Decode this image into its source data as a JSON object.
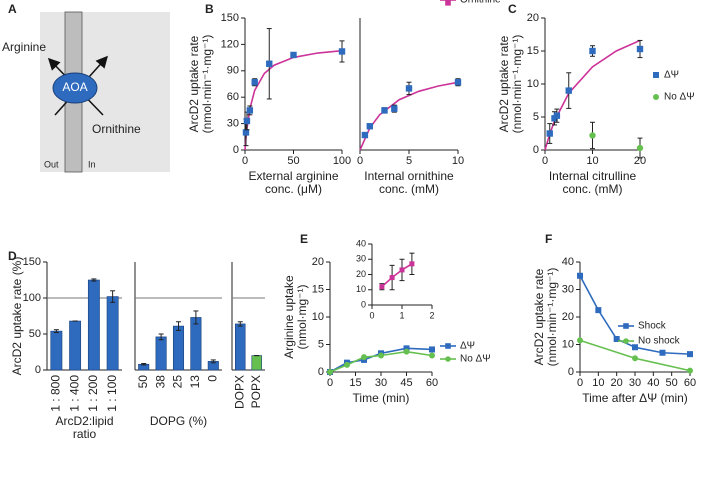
{
  "diagram": {
    "panel_label": "A",
    "substrate": "Arginine",
    "protein": "AOA",
    "product": "Ornithine",
    "outside": "Out",
    "inside": "In"
  },
  "chart_data": [
    {
      "type": "scatter",
      "panel_label": "B",
      "ylabel": [
        "ArcD2 uptake rate",
        "(nmol·min⁻¹·mg⁻¹)"
      ],
      "xlabel": [
        "External arginine",
        "conc. (μM)"
      ],
      "xlim": [
        0,
        100
      ],
      "xticks": [
        0,
        50,
        100
      ],
      "ylim": [
        0,
        150
      ],
      "yticks": [
        0,
        30,
        60,
        90,
        120,
        150
      ],
      "series": [
        {
          "color": "#2e6bbf",
          "marker": "square",
          "x": [
            1,
            2,
            5,
            10,
            25,
            50,
            100
          ],
          "values": [
            20,
            33,
            45,
            77,
            98,
            108,
            112
          ],
          "errors": [
            15,
            10,
            5,
            4,
            40,
            2,
            12
          ]
        }
      ],
      "fit": {
        "color": "#cc3399",
        "x": [
          0,
          1,
          2,
          5,
          10,
          20,
          30,
          50,
          75,
          100
        ],
        "values": [
          0,
          13.6,
          24.4,
          46.9,
          67.8,
          87.1,
          96.3,
          105.2,
          110.2,
          112.9
        ]
      }
    },
    {
      "type": "scatter",
      "xlabel": [
        "Internal ornithine",
        "conc. (mM)"
      ],
      "xlim": [
        0,
        10
      ],
      "xticks": [
        0,
        5,
        10
      ],
      "ylim": [
        0,
        150
      ],
      "series": [
        {
          "color": "#2e6bbf",
          "marker": "square",
          "x": [
            0.5,
            1,
            2.5,
            3.5,
            5,
            10
          ],
          "values": [
            17,
            27,
            45,
            47,
            70,
            77
          ],
          "errors": [
            2,
            2,
            3,
            4,
            7,
            4
          ]
        }
      ],
      "fit": {
        "color": "#cc3399",
        "x": [
          0,
          1,
          2,
          4,
          6,
          8,
          10
        ],
        "values": [
          0,
          25,
          40,
          57.1,
          66.7,
          72.7,
          76.9
        ]
      }
    },
    {
      "type": "scatter",
      "panel_label": "C",
      "ylabel": [
        "ArcD2 uptake rate",
        "(nmol·min⁻¹·mg⁻¹)"
      ],
      "xlabel": [
        "Internal citrulline",
        "conc. (mM)"
      ],
      "xlim": [
        0,
        20
      ],
      "xticks": [
        0,
        10,
        20
      ],
      "ylim": [
        0,
        20
      ],
      "yticks": [
        0,
        5,
        10,
        15,
        20
      ],
      "series": [
        {
          "name": "ΔΨ",
          "color": "#2e6bbf",
          "marker": "square",
          "x": [
            1,
            2,
            2.5,
            5,
            10,
            20
          ],
          "values": [
            2.5,
            4.8,
            5.2,
            9,
            15,
            15.3
          ],
          "errors": [
            1.5,
            1,
            1,
            2.7,
            0.8,
            1.3
          ]
        },
        {
          "name": "No ΔΨ",
          "color": "#66c04f",
          "marker": "circle",
          "x": [
            10,
            20
          ],
          "values": [
            2.2,
            0.3
          ],
          "errors": [
            2,
            1.5
          ]
        }
      ],
      "fit": {
        "color": "#cc3399",
        "x": [
          0,
          1,
          2,
          5,
          10,
          15,
          20
        ],
        "values": [
          0,
          2.4,
          4.4,
          8.6,
          12.6,
          15,
          16.6
        ]
      }
    },
    {
      "type": "bar",
      "panel_label": "D",
      "ylabel": [
        "ArcD2 uptake rate (%)"
      ],
      "xlabel": [
        "ArcD2:lipid",
        "ratio"
      ],
      "categories": [
        "1 : 800",
        "1 : 400",
        "1 : 200",
        "1 : 100"
      ],
      "values": [
        54,
        68,
        125,
        102
      ],
      "errors": [
        2,
        0,
        1.5,
        8
      ],
      "color": "#2e6bbf",
      "ylim": [
        0,
        150
      ],
      "yticks": [
        0,
        50,
        100,
        150
      ],
      "refline": 100
    },
    {
      "type": "bar",
      "xlabel": [
        "DOPG (%)"
      ],
      "categories": [
        "50",
        "38",
        "25",
        "13",
        "0"
      ],
      "values": [
        8,
        46,
        61,
        73,
        12
      ],
      "errors": [
        1,
        4,
        6,
        9,
        2
      ],
      "color": "#2e6bbf",
      "ylim": [
        0,
        150
      ],
      "refline": 100
    },
    {
      "type": "bar",
      "categories": [
        "DOPX",
        "POPX"
      ],
      "values": [
        64,
        20
      ],
      "errors": [
        3,
        0
      ],
      "colors": [
        "#2e6bbf",
        "#66c04f"
      ],
      "ylim": [
        0,
        150
      ],
      "refline": 100
    },
    {
      "type": "line",
      "panel_label": "E",
      "ylabel": [
        "Arginine uptake",
        "(nmol·mg⁻¹)"
      ],
      "xlabel": [
        "Time (min)"
      ],
      "xlim": [
        0,
        60
      ],
      "xticks": [
        0,
        15,
        30,
        45,
        60
      ],
      "ylim": [
        0,
        20
      ],
      "yticks": [
        0,
        5,
        10,
        15,
        20
      ],
      "series": [
        {
          "name": "ΔΨ",
          "color": "#2e6bbf",
          "marker": "square",
          "x": [
            0,
            10,
            20,
            30,
            45,
            60
          ],
          "values": [
            0,
            1.7,
            2.2,
            3.4,
            4.3,
            4.1
          ]
        },
        {
          "name": "No ΔΨ",
          "color": "#66c04f",
          "marker": "circle",
          "x": [
            0,
            10,
            20,
            30,
            45,
            60
          ],
          "values": [
            0,
            1.3,
            2.7,
            3.0,
            3.7,
            3.0
          ]
        }
      ]
    },
    {
      "type": "line",
      "xlim": [
        0,
        2
      ],
      "xticks": [
        0,
        1,
        2
      ],
      "ylim": [
        0,
        40
      ],
      "yticks": [
        0,
        10,
        20,
        30,
        40
      ],
      "series": [
        {
          "name": "Ornithine",
          "color": "#cc3399",
          "marker": "square",
          "x": [
            0.33,
            0.67,
            1,
            1.33
          ],
          "values": [
            12,
            18,
            23,
            27
          ],
          "errors": [
            2,
            8,
            7,
            7
          ]
        }
      ]
    },
    {
      "type": "line",
      "panel_label": "F",
      "ylabel": [
        "ArcD2 uptake rate",
        "(nmol·min⁻¹·mg⁻¹)"
      ],
      "xlabel": [
        "Time after ΔΨ (min)"
      ],
      "xlim": [
        0,
        60
      ],
      "xticks": [
        0,
        10,
        20,
        30,
        40,
        50,
        60
      ],
      "ylim": [
        0,
        40
      ],
      "yticks": [
        0,
        10,
        20,
        30,
        40
      ],
      "series": [
        {
          "name": "Shock",
          "color": "#2e6bbf",
          "marker": "square",
          "x": [
            0,
            10,
            20,
            30,
            45,
            60
          ],
          "values": [
            35,
            22.5,
            12,
            9,
            7,
            6.5
          ]
        },
        {
          "name": "No shock",
          "color": "#66c04f",
          "marker": "circle",
          "x": [
            0,
            30,
            60
          ],
          "values": [
            11.5,
            5,
            0.5
          ]
        }
      ]
    }
  ]
}
